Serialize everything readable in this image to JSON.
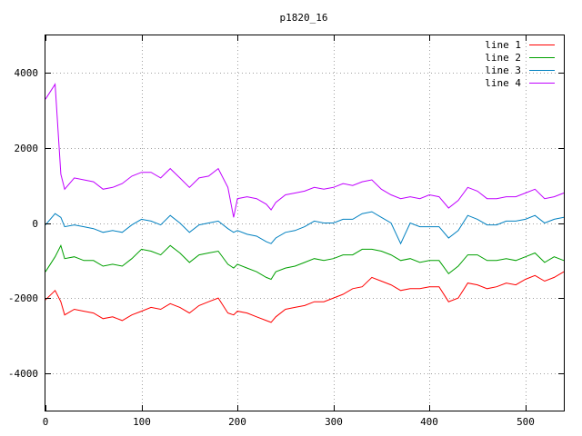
{
  "chart_data": {
    "type": "line",
    "title": "p1820_16",
    "xlabel": "",
    "ylabel": "",
    "xlim": [
      0,
      540
    ],
    "ylim": [
      -5000,
      5000
    ],
    "xticks": [
      0,
      100,
      200,
      300,
      400,
      500
    ],
    "yticks": [
      -4000,
      -2000,
      0,
      2000,
      4000
    ],
    "grid": true,
    "legend_position": "top-right",
    "x": [
      0,
      10,
      16,
      20,
      30,
      40,
      50,
      60,
      70,
      80,
      90,
      100,
      110,
      120,
      130,
      140,
      150,
      160,
      170,
      180,
      190,
      196,
      200,
      210,
      220,
      230,
      235,
      240,
      250,
      260,
      270,
      280,
      290,
      300,
      310,
      320,
      330,
      340,
      350,
      360,
      370,
      380,
      390,
      400,
      410,
      420,
      430,
      440,
      450,
      460,
      470,
      480,
      490,
      500,
      510,
      520,
      530,
      540
    ],
    "series": [
      {
        "name": "line 1",
        "color": "#ff0000",
        "values": [
          -2050,
          -1800,
          -2100,
          -2450,
          -2300,
          -2350,
          -2400,
          -2550,
          -2500,
          -2600,
          -2450,
          -2350,
          -2250,
          -2300,
          -2150,
          -2250,
          -2400,
          -2200,
          -2100,
          -2000,
          -2400,
          -2450,
          -2350,
          -2400,
          -2500,
          -2600,
          -2650,
          -2500,
          -2300,
          -2250,
          -2200,
          -2100,
          -2100,
          -2000,
          -1900,
          -1750,
          -1700,
          -1450,
          -1550,
          -1650,
          -1800,
          -1750,
          -1750,
          -1700,
          -1700,
          -2100,
          -2000,
          -1600,
          -1650,
          -1750,
          -1700,
          -1600,
          -1650,
          -1500,
          -1400,
          -1550,
          -1450,
          -1300
        ]
      },
      {
        "name": "line 2",
        "color": "#00a000",
        "values": [
          -1300,
          -900,
          -600,
          -950,
          -900,
          -1000,
          -1000,
          -1150,
          -1100,
          -1150,
          -950,
          -700,
          -750,
          -850,
          -600,
          -800,
          -1050,
          -850,
          -800,
          -750,
          -1100,
          -1200,
          -1100,
          -1200,
          -1300,
          -1450,
          -1500,
          -1300,
          -1200,
          -1150,
          -1050,
          -950,
          -1000,
          -950,
          -850,
          -850,
          -700,
          -700,
          -750,
          -850,
          -1000,
          -950,
          -1050,
          -1000,
          -1000,
          -1350,
          -1150,
          -850,
          -850,
          -1000,
          -1000,
          -950,
          -1000,
          -900,
          -800,
          -1050,
          -900,
          -1000
        ]
      },
      {
        "name": "line 3",
        "color": "#0080c0",
        "values": [
          -50,
          250,
          150,
          -100,
          -50,
          -100,
          -150,
          -250,
          -200,
          -250,
          -50,
          100,
          50,
          -50,
          200,
          0,
          -250,
          -50,
          0,
          50,
          -150,
          -250,
          -200,
          -300,
          -350,
          -500,
          -550,
          -400,
          -250,
          -200,
          -100,
          50,
          0,
          0,
          100,
          100,
          250,
          300,
          150,
          0,
          -550,
          0,
          -100,
          -100,
          -100,
          -400,
          -200,
          200,
          100,
          -50,
          -50,
          50,
          50,
          100,
          200,
          0,
          100,
          150
        ]
      },
      {
        "name": "line 4",
        "color": "#c000ff",
        "values": [
          3300,
          3700,
          1300,
          900,
          1200,
          1150,
          1100,
          900,
          950,
          1050,
          1250,
          1350,
          1350,
          1200,
          1450,
          1200,
          950,
          1200,
          1250,
          1450,
          950,
          150,
          650,
          700,
          650,
          500,
          350,
          550,
          750,
          800,
          850,
          950,
          900,
          950,
          1050,
          1000,
          1100,
          1150,
          900,
          750,
          650,
          700,
          650,
          750,
          700,
          400,
          600,
          950,
          850,
          650,
          650,
          700,
          700,
          800,
          900,
          650,
          700,
          800
        ]
      }
    ]
  }
}
